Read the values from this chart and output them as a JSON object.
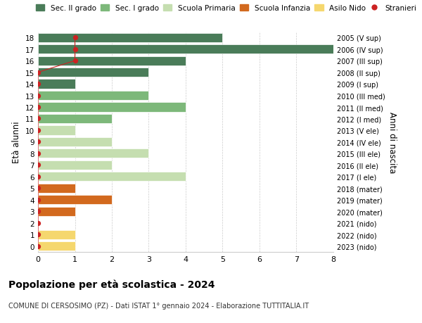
{
  "ages": [
    18,
    17,
    16,
    15,
    14,
    13,
    12,
    11,
    10,
    9,
    8,
    7,
    6,
    5,
    4,
    3,
    2,
    1,
    0
  ],
  "right_labels": [
    "2005 (V sup)",
    "2006 (IV sup)",
    "2007 (III sup)",
    "2008 (II sup)",
    "2009 (I sup)",
    "2010 (III med)",
    "2011 (II med)",
    "2012 (I med)",
    "2013 (V ele)",
    "2014 (IV ele)",
    "2015 (III ele)",
    "2016 (II ele)",
    "2017 (I ele)",
    "2018 (mater)",
    "2019 (mater)",
    "2020 (mater)",
    "2021 (nido)",
    "2022 (nido)",
    "2023 (nido)"
  ],
  "bar_values": [
    5,
    8,
    4,
    3,
    1,
    3,
    4,
    2,
    1,
    2,
    3,
    2,
    4,
    1,
    2,
    1,
    0,
    1,
    1
  ],
  "bar_colors": [
    "#4a7c59",
    "#4a7c59",
    "#4a7c59",
    "#4a7c59",
    "#4a7c59",
    "#7db87a",
    "#7db87a",
    "#7db87a",
    "#c5deb0",
    "#c5deb0",
    "#c5deb0",
    "#c5deb0",
    "#c5deb0",
    "#d2691e",
    "#d2691e",
    "#d2691e",
    "#f5d76e",
    "#f5d76e",
    "#f5d76e"
  ],
  "legend_labels": [
    "Sec. II grado",
    "Sec. I grado",
    "Scuola Primaria",
    "Scuola Infanzia",
    "Asilo Nido",
    "Stranieri"
  ],
  "legend_colors": [
    "#4a7c59",
    "#7db87a",
    "#c5deb0",
    "#d2691e",
    "#f5d76e",
    "#cc2222"
  ],
  "ylabel": "Età alunni",
  "right_ylabel": "Anni di nascita",
  "title": "Popolazione per età scolastica - 2024",
  "subtitle": "COMUNE DI CERSOSIMO (PZ) - Dati ISTAT 1° gennaio 2024 - Elaborazione TUTTITALIA.IT",
  "xlim": [
    0,
    8
  ],
  "background_color": "#ffffff",
  "grid_color": "#cccccc"
}
